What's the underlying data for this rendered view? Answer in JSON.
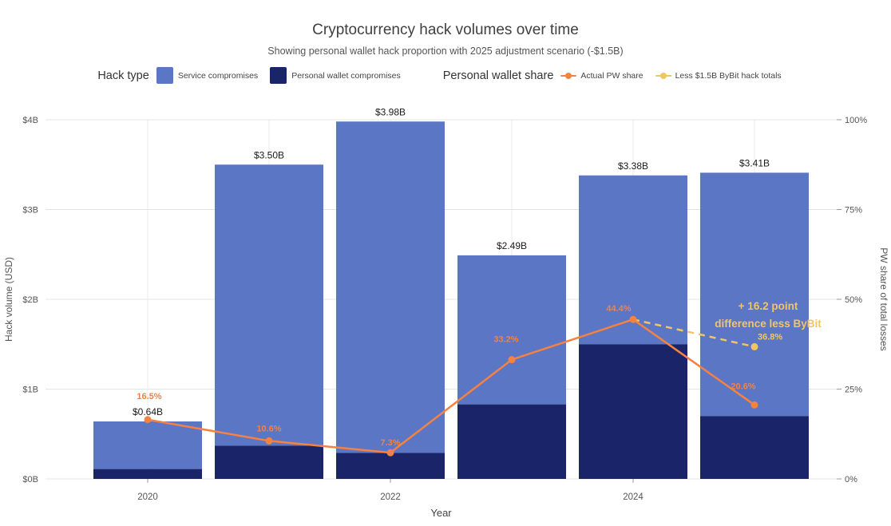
{
  "header": {
    "title": "Cryptocurrency hack volumes over time",
    "subtitle": "Showing personal wallet hack proportion with 2025 adjustment scenario (-$1.5B)"
  },
  "legend": {
    "hack_type_label": "Hack type",
    "hack_type_items": [
      {
        "label": "Service compromises",
        "color": "#5b76c4"
      },
      {
        "label": "Personal wallet compromises",
        "color": "#1a2468"
      }
    ],
    "pw_share_label": "Personal wallet share",
    "pw_share_items": [
      {
        "label": "Actual PW share",
        "color": "#f58142"
      },
      {
        "label": "Less $1.5B ByBit hack totals",
        "color": "#f2c564"
      }
    ]
  },
  "chart_data": {
    "type": "bar",
    "title": "Cryptocurrency hack volumes over time",
    "subtitle": "Showing personal wallet hack proportion with 2025 adjustment scenario (-$1.5B)",
    "x": [
      2020,
      2021,
      2022,
      2023,
      2024,
      2025
    ],
    "x_tick_labels": [
      "2020",
      "2022",
      "2024"
    ],
    "xlabel": "Year",
    "ylabel_left": "Hack volume (USD)",
    "ylabel_right": "PW share of total losses",
    "ylim_left": [
      0,
      4
    ],
    "ylim_right": [
      0,
      100
    ],
    "y_ticks_left": [
      "$0B",
      "$1B",
      "$2B",
      "$3B",
      "$4B"
    ],
    "y_ticks_right": [
      "0%",
      "25%",
      "50%",
      "75%",
      "100%"
    ],
    "colors": {
      "service": "#5b76c4",
      "personal_wallet": "#1a2468"
    },
    "bars": {
      "stack_order": [
        "personal_wallet",
        "service"
      ],
      "totals": [
        0.64,
        3.5,
        3.98,
        2.49,
        3.38,
        3.41
      ],
      "total_labels": [
        "$0.64B",
        "$3.50B",
        "$3.98B",
        "$2.49B",
        "$3.38B",
        "$3.41B"
      ],
      "personal_wallet": [
        0.11,
        0.37,
        0.29,
        0.83,
        1.5,
        0.7
      ]
    },
    "lines": [
      {
        "name": "Actual PW share",
        "color": "#f58142",
        "style": "solid",
        "x": [
          2020,
          2021,
          2022,
          2023,
          2024,
          2025
        ],
        "values": [
          16.5,
          10.6,
          7.3,
          33.2,
          44.4,
          20.6
        ],
        "labels": [
          "16.5%",
          "10.6%",
          "7.3%",
          "33.2%",
          "44.4%",
          "20.6%"
        ]
      },
      {
        "name": "Less $1.5B ByBit hack totals",
        "color": "#f2c564",
        "style": "dashed",
        "x": [
          2024,
          2025
        ],
        "values": [
          44.4,
          36.8
        ],
        "labels": [
          "",
          "36.8%"
        ]
      }
    ],
    "annotation": {
      "lines": [
        "+ 16.2 point",
        "difference less ByBit"
      ],
      "color": "#f2c564"
    }
  }
}
